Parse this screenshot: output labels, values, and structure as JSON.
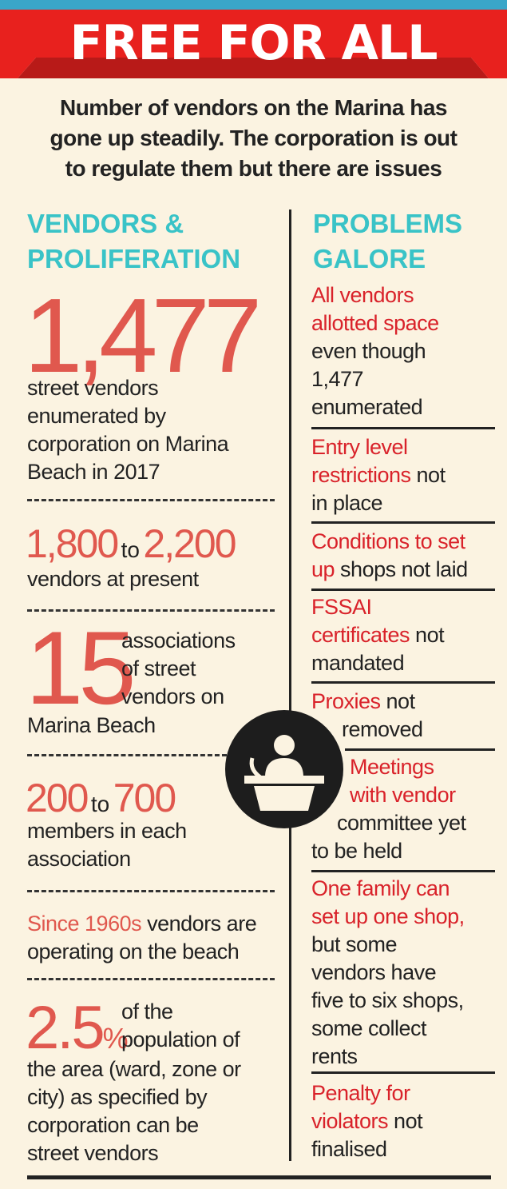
{
  "banner": {
    "title": "FREE FOR ALL",
    "color": "#e8211e"
  },
  "intro": {
    "line1": "Number of vendors on the Marina has",
    "line2": "gone up steadily. The corporation is out",
    "line3": "to regulate them but there are issues"
  },
  "left": {
    "heading_line1": "VENDORS &",
    "heading_line2": "PROLIFERATION",
    "stat1": {
      "number": "1,477",
      "line1": "street vendors",
      "line2": "enumerated by",
      "line3": "corporation on Marina",
      "line4": "Beach in 2017"
    },
    "stat2": {
      "from": "1,800",
      "to_word": "to",
      "to": "2,200",
      "desc": "vendors at present"
    },
    "stat3": {
      "number": "15",
      "line1": "associations",
      "line2": "of street",
      "line3": "vendors on",
      "line4": "Marina Beach"
    },
    "stat4": {
      "from": "200",
      "to_word": "to",
      "to": "700",
      "line1": "members in each",
      "line2": "association"
    },
    "stat5": {
      "highlight": "Since 1960s",
      "rest1": "vendors are",
      "line2": "operating on the beach"
    },
    "stat6": {
      "number": "2.5",
      "unit": "%",
      "line1": "of the",
      "line2": "population of",
      "line3": "the area (ward, zone or",
      "line4": "city) as specified by",
      "line5": "corporation can be",
      "line6": "street vendors"
    }
  },
  "right": {
    "heading_line1": "PROBLEMS",
    "heading_line2": "GALORE",
    "p1": {
      "red1": "All vendors",
      "red2": "allotted space",
      "l3": "even though",
      "l4": "1,477",
      "l5": "enumerated"
    },
    "p2": {
      "red1": "Entry level",
      "red2": "restrictions",
      "rest2": " not",
      "l3": "in place"
    },
    "p3": {
      "red1": "Conditions to set",
      "red2": "up",
      "rest2": " shops not laid"
    },
    "p4": {
      "red1": "FSSAI",
      "red2": "certificates",
      "rest2": " not",
      "l3": "mandated"
    },
    "p5": {
      "red1": "Proxies",
      "rest1": " not",
      "l2": "removed"
    },
    "p6": {
      "red1": "Meetings",
      "red2": "with vendor",
      "l3": "committee yet",
      "l4": "to be held"
    },
    "p7": {
      "red1": "One family can",
      "red2": "set up one shop,",
      "l3": "but some",
      "l4": "vendors have",
      "l5": "five to six shops,",
      "l6": "some collect",
      "l7": "rents"
    },
    "p8": {
      "red1": "Penalty for",
      "red2": "violators",
      "rest2": " not",
      "l3": "finalised"
    }
  },
  "icon": {
    "name": "podium-speaker-icon"
  }
}
